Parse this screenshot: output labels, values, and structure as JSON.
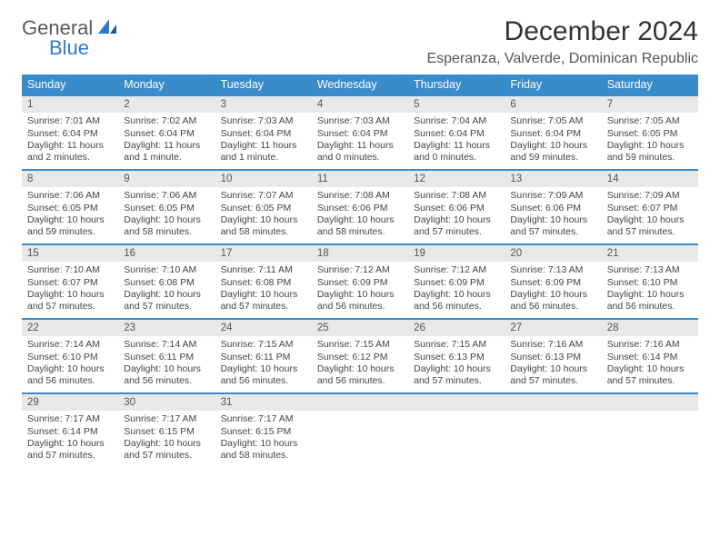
{
  "brand": {
    "part1": "General",
    "part2": "Blue"
  },
  "title": "December 2024",
  "location": "Esperanza, Valverde, Dominican Republic",
  "colors": {
    "header_blue": "#3a8bc9",
    "logo_gray": "#5a5a5a",
    "logo_blue": "#2e7cc2",
    "cell_gray": "#e8e8e8"
  },
  "weekdays": [
    "Sunday",
    "Monday",
    "Tuesday",
    "Wednesday",
    "Thursday",
    "Friday",
    "Saturday"
  ],
  "days": [
    {
      "n": "1",
      "sr": "7:01 AM",
      "ss": "6:04 PM",
      "dl": "11 hours and 2 minutes."
    },
    {
      "n": "2",
      "sr": "7:02 AM",
      "ss": "6:04 PM",
      "dl": "11 hours and 1 minute."
    },
    {
      "n": "3",
      "sr": "7:03 AM",
      "ss": "6:04 PM",
      "dl": "11 hours and 1 minute."
    },
    {
      "n": "4",
      "sr": "7:03 AM",
      "ss": "6:04 PM",
      "dl": "11 hours and 0 minutes."
    },
    {
      "n": "5",
      "sr": "7:04 AM",
      "ss": "6:04 PM",
      "dl": "11 hours and 0 minutes."
    },
    {
      "n": "6",
      "sr": "7:05 AM",
      "ss": "6:04 PM",
      "dl": "10 hours and 59 minutes."
    },
    {
      "n": "7",
      "sr": "7:05 AM",
      "ss": "6:05 PM",
      "dl": "10 hours and 59 minutes."
    },
    {
      "n": "8",
      "sr": "7:06 AM",
      "ss": "6:05 PM",
      "dl": "10 hours and 59 minutes."
    },
    {
      "n": "9",
      "sr": "7:06 AM",
      "ss": "6:05 PM",
      "dl": "10 hours and 58 minutes."
    },
    {
      "n": "10",
      "sr": "7:07 AM",
      "ss": "6:05 PM",
      "dl": "10 hours and 58 minutes."
    },
    {
      "n": "11",
      "sr": "7:08 AM",
      "ss": "6:06 PM",
      "dl": "10 hours and 58 minutes."
    },
    {
      "n": "12",
      "sr": "7:08 AM",
      "ss": "6:06 PM",
      "dl": "10 hours and 57 minutes."
    },
    {
      "n": "13",
      "sr": "7:09 AM",
      "ss": "6:06 PM",
      "dl": "10 hours and 57 minutes."
    },
    {
      "n": "14",
      "sr": "7:09 AM",
      "ss": "6:07 PM",
      "dl": "10 hours and 57 minutes."
    },
    {
      "n": "15",
      "sr": "7:10 AM",
      "ss": "6:07 PM",
      "dl": "10 hours and 57 minutes."
    },
    {
      "n": "16",
      "sr": "7:10 AM",
      "ss": "6:08 PM",
      "dl": "10 hours and 57 minutes."
    },
    {
      "n": "17",
      "sr": "7:11 AM",
      "ss": "6:08 PM",
      "dl": "10 hours and 57 minutes."
    },
    {
      "n": "18",
      "sr": "7:12 AM",
      "ss": "6:09 PM",
      "dl": "10 hours and 56 minutes."
    },
    {
      "n": "19",
      "sr": "7:12 AM",
      "ss": "6:09 PM",
      "dl": "10 hours and 56 minutes."
    },
    {
      "n": "20",
      "sr": "7:13 AM",
      "ss": "6:09 PM",
      "dl": "10 hours and 56 minutes."
    },
    {
      "n": "21",
      "sr": "7:13 AM",
      "ss": "6:10 PM",
      "dl": "10 hours and 56 minutes."
    },
    {
      "n": "22",
      "sr": "7:14 AM",
      "ss": "6:10 PM",
      "dl": "10 hours and 56 minutes."
    },
    {
      "n": "23",
      "sr": "7:14 AM",
      "ss": "6:11 PM",
      "dl": "10 hours and 56 minutes."
    },
    {
      "n": "24",
      "sr": "7:15 AM",
      "ss": "6:11 PM",
      "dl": "10 hours and 56 minutes."
    },
    {
      "n": "25",
      "sr": "7:15 AM",
      "ss": "6:12 PM",
      "dl": "10 hours and 56 minutes."
    },
    {
      "n": "26",
      "sr": "7:15 AM",
      "ss": "6:13 PM",
      "dl": "10 hours and 57 minutes."
    },
    {
      "n": "27",
      "sr": "7:16 AM",
      "ss": "6:13 PM",
      "dl": "10 hours and 57 minutes."
    },
    {
      "n": "28",
      "sr": "7:16 AM",
      "ss": "6:14 PM",
      "dl": "10 hours and 57 minutes."
    },
    {
      "n": "29",
      "sr": "7:17 AM",
      "ss": "6:14 PM",
      "dl": "10 hours and 57 minutes."
    },
    {
      "n": "30",
      "sr": "7:17 AM",
      "ss": "6:15 PM",
      "dl": "10 hours and 57 minutes."
    },
    {
      "n": "31",
      "sr": "7:17 AM",
      "ss": "6:15 PM",
      "dl": "10 hours and 58 minutes."
    }
  ],
  "labels": {
    "sunrise": "Sunrise:",
    "sunset": "Sunset:",
    "daylight": "Daylight:"
  }
}
